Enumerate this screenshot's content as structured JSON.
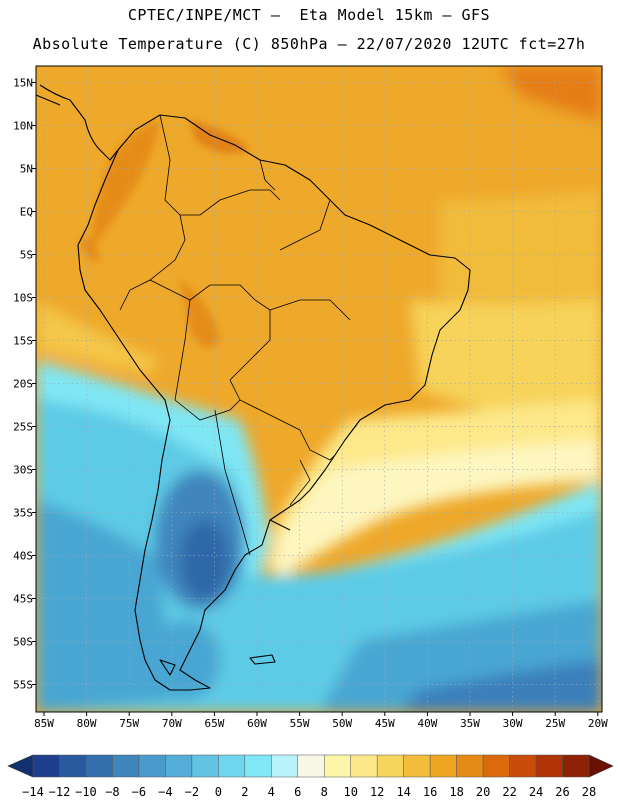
{
  "header": {
    "line1": "CPTEC/INPE/MCT –  Eta Model 15km – GFS",
    "line2": "Absolute Temperature (C) 850hPa – 22/07/2020 12UTC fct=27h"
  },
  "map": {
    "lat_labels": [
      "15N",
      "10N",
      "5N",
      "EQ",
      "5S",
      "10S",
      "15S",
      "20S",
      "25S",
      "30S",
      "35S",
      "40S",
      "45S",
      "50S",
      "55S"
    ],
    "lon_labels": [
      "85W",
      "80W",
      "75W",
      "70W",
      "65W",
      "60W",
      "55W",
      "50W",
      "45W",
      "40W",
      "35W",
      "30W",
      "25W",
      "20W"
    ]
  },
  "colorbar": {
    "labels": [
      "-14",
      "-12",
      "-10",
      "-8",
      "-6",
      "-4",
      "-2",
      "0",
      "2",
      "4",
      "6",
      "8",
      "10",
      "12",
      "14",
      "16",
      "18",
      "20",
      "22",
      "24",
      "26",
      "28"
    ],
    "colors": [
      "#1f3f8c",
      "#2a5a9e",
      "#3470ad",
      "#3f86bd",
      "#4a9acb",
      "#55aed7",
      "#62c3e3",
      "#6ed6ee",
      "#80e7f6",
      "#b8f2fb",
      "#f8f6e6",
      "#fdf6a8",
      "#fbe88a",
      "#f7d45c",
      "#f2bd3d",
      "#eda522",
      "#e58a15",
      "#da6a0c",
      "#c94c0a",
      "#b03408",
      "#8e2206"
    ],
    "under_color": "#12306e",
    "over_color": "#6a1004"
  }
}
